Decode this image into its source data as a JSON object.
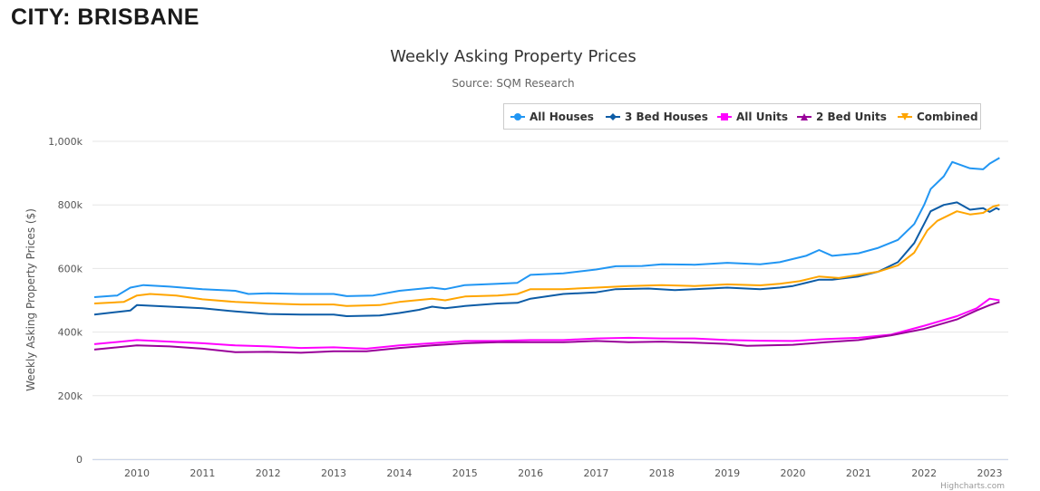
{
  "page": {
    "heading": "CITY: BRISBANE"
  },
  "chart_data": {
    "type": "line",
    "title": "Weekly Asking Property Prices",
    "subtitle": "Source: SQM Research",
    "ylabel": "Weekly Asking Property Prices ($)",
    "xlabel": "",
    "ylim": [
      0,
      1000000
    ],
    "xlim": [
      2009.33,
      2023.2
    ],
    "yticks": [
      {
        "v": 0,
        "label": "0"
      },
      {
        "v": 200000,
        "label": "200k"
      },
      {
        "v": 400000,
        "label": "400k"
      },
      {
        "v": 600000,
        "label": "600k"
      },
      {
        "v": 800000,
        "label": "800k"
      },
      {
        "v": 1000000,
        "label": "1,000k"
      }
    ],
    "xticks": [
      "2010",
      "2011",
      "2012",
      "2013",
      "2014",
      "2015",
      "2016",
      "2017",
      "2018",
      "2019",
      "2020",
      "2021",
      "2022",
      "2023"
    ],
    "grid": true,
    "legend_position": "top-right",
    "credits": "Highcharts.com",
    "series": [
      {
        "name": "All Houses",
        "color": "#2196f3",
        "marker": "circle",
        "points": [
          [
            2009.35,
            510000
          ],
          [
            2009.7,
            515000
          ],
          [
            2009.9,
            540000
          ],
          [
            2010.1,
            548000
          ],
          [
            2010.5,
            543000
          ],
          [
            2011,
            535000
          ],
          [
            2011.5,
            530000
          ],
          [
            2011.7,
            520000
          ],
          [
            2012,
            522000
          ],
          [
            2012.5,
            520000
          ],
          [
            2013,
            520000
          ],
          [
            2013.2,
            513000
          ],
          [
            2013.6,
            515000
          ],
          [
            2014,
            530000
          ],
          [
            2014.5,
            540000
          ],
          [
            2014.7,
            535000
          ],
          [
            2015,
            548000
          ],
          [
            2015.5,
            552000
          ],
          [
            2015.8,
            555000
          ],
          [
            2016,
            580000
          ],
          [
            2016.5,
            585000
          ],
          [
            2017,
            597000
          ],
          [
            2017.3,
            607000
          ],
          [
            2017.7,
            608000
          ],
          [
            2018,
            613000
          ],
          [
            2018.5,
            612000
          ],
          [
            2019,
            618000
          ],
          [
            2019.5,
            613000
          ],
          [
            2019.8,
            620000
          ],
          [
            2020.2,
            640000
          ],
          [
            2020.4,
            658000
          ],
          [
            2020.6,
            640000
          ],
          [
            2021,
            648000
          ],
          [
            2021.3,
            665000
          ],
          [
            2021.6,
            690000
          ],
          [
            2021.85,
            740000
          ],
          [
            2022.0,
            800000
          ],
          [
            2022.1,
            850000
          ],
          [
            2022.3,
            890000
          ],
          [
            2022.43,
            935000
          ],
          [
            2022.7,
            915000
          ],
          [
            2022.9,
            912000
          ],
          [
            2023.0,
            930000
          ],
          [
            2023.15,
            948000
          ]
        ]
      },
      {
        "name": "3 Bed Houses",
        "color": "#0d5ca6",
        "marker": "diamond",
        "points": [
          [
            2009.35,
            455000
          ],
          [
            2009.9,
            468000
          ],
          [
            2010,
            485000
          ],
          [
            2010.5,
            480000
          ],
          [
            2011,
            475000
          ],
          [
            2011.5,
            465000
          ],
          [
            2012,
            457000
          ],
          [
            2012.5,
            455000
          ],
          [
            2013,
            455000
          ],
          [
            2013.2,
            450000
          ],
          [
            2013.7,
            452000
          ],
          [
            2014,
            460000
          ],
          [
            2014.3,
            470000
          ],
          [
            2014.5,
            480000
          ],
          [
            2014.7,
            475000
          ],
          [
            2015,
            482000
          ],
          [
            2015.5,
            490000
          ],
          [
            2015.8,
            492000
          ],
          [
            2016,
            505000
          ],
          [
            2016.5,
            520000
          ],
          [
            2017,
            525000
          ],
          [
            2017.3,
            535000
          ],
          [
            2017.8,
            537000
          ],
          [
            2018.2,
            532000
          ],
          [
            2018.5,
            535000
          ],
          [
            2019,
            540000
          ],
          [
            2019.5,
            535000
          ],
          [
            2019.8,
            540000
          ],
          [
            2020,
            545000
          ],
          [
            2020.4,
            565000
          ],
          [
            2020.6,
            565000
          ],
          [
            2021,
            575000
          ],
          [
            2021.3,
            590000
          ],
          [
            2021.6,
            620000
          ],
          [
            2021.85,
            680000
          ],
          [
            2022.05,
            760000
          ],
          [
            2022.1,
            780000
          ],
          [
            2022.3,
            800000
          ],
          [
            2022.5,
            808000
          ],
          [
            2022.7,
            785000
          ],
          [
            2022.9,
            790000
          ],
          [
            2023.0,
            778000
          ],
          [
            2023.1,
            790000
          ],
          [
            2023.15,
            785000
          ]
        ]
      },
      {
        "name": "All Units",
        "color": "#ff00ff",
        "marker": "square",
        "points": [
          [
            2009.35,
            362000
          ],
          [
            2010,
            375000
          ],
          [
            2010.5,
            370000
          ],
          [
            2011,
            365000
          ],
          [
            2011.5,
            358000
          ],
          [
            2012,
            355000
          ],
          [
            2012.5,
            350000
          ],
          [
            2013,
            352000
          ],
          [
            2013.5,
            348000
          ],
          [
            2014,
            358000
          ],
          [
            2014.5,
            365000
          ],
          [
            2015,
            372000
          ],
          [
            2015.5,
            372000
          ],
          [
            2016,
            375000
          ],
          [
            2016.5,
            375000
          ],
          [
            2017,
            380000
          ],
          [
            2017.5,
            382000
          ],
          [
            2018,
            380000
          ],
          [
            2018.5,
            380000
          ],
          [
            2019,
            375000
          ],
          [
            2019.5,
            373000
          ],
          [
            2020,
            372000
          ],
          [
            2020.5,
            378000
          ],
          [
            2021,
            382000
          ],
          [
            2021.5,
            392000
          ],
          [
            2022,
            420000
          ],
          [
            2022.5,
            450000
          ],
          [
            2022.8,
            475000
          ],
          [
            2023.0,
            505000
          ],
          [
            2023.15,
            500000
          ]
        ]
      },
      {
        "name": "2 Bed Units",
        "color": "#990099",
        "marker": "triangle",
        "points": [
          [
            2009.35,
            345000
          ],
          [
            2010,
            358000
          ],
          [
            2010.5,
            355000
          ],
          [
            2011,
            348000
          ],
          [
            2011.5,
            337000
          ],
          [
            2012,
            338000
          ],
          [
            2012.5,
            335000
          ],
          [
            2013,
            340000
          ],
          [
            2013.5,
            340000
          ],
          [
            2014,
            350000
          ],
          [
            2014.5,
            358000
          ],
          [
            2015,
            365000
          ],
          [
            2015.5,
            368000
          ],
          [
            2016,
            368000
          ],
          [
            2016.5,
            368000
          ],
          [
            2017,
            372000
          ],
          [
            2017.5,
            368000
          ],
          [
            2018,
            370000
          ],
          [
            2018.5,
            367000
          ],
          [
            2019,
            363000
          ],
          [
            2019.3,
            357000
          ],
          [
            2020,
            360000
          ],
          [
            2020.5,
            368000
          ],
          [
            2021,
            375000
          ],
          [
            2021.5,
            390000
          ],
          [
            2022,
            410000
          ],
          [
            2022.5,
            440000
          ],
          [
            2022.8,
            468000
          ],
          [
            2023,
            485000
          ],
          [
            2023.15,
            495000
          ]
        ]
      },
      {
        "name": "Combined",
        "color": "#ffa500",
        "marker": "triangle-down",
        "points": [
          [
            2009.35,
            490000
          ],
          [
            2009.8,
            495000
          ],
          [
            2010,
            515000
          ],
          [
            2010.2,
            520000
          ],
          [
            2010.6,
            515000
          ],
          [
            2011,
            503000
          ],
          [
            2011.5,
            495000
          ],
          [
            2012,
            490000
          ],
          [
            2012.5,
            487000
          ],
          [
            2013,
            487000
          ],
          [
            2013.2,
            482000
          ],
          [
            2013.7,
            485000
          ],
          [
            2014,
            495000
          ],
          [
            2014.5,
            505000
          ],
          [
            2014.7,
            500000
          ],
          [
            2015,
            512000
          ],
          [
            2015.5,
            515000
          ],
          [
            2015.8,
            520000
          ],
          [
            2016,
            535000
          ],
          [
            2016.5,
            535000
          ],
          [
            2017,
            540000
          ],
          [
            2017.5,
            545000
          ],
          [
            2018,
            548000
          ],
          [
            2018.5,
            545000
          ],
          [
            2019,
            550000
          ],
          [
            2019.5,
            547000
          ],
          [
            2019.8,
            552000
          ],
          [
            2020.1,
            560000
          ],
          [
            2020.4,
            575000
          ],
          [
            2020.7,
            570000
          ],
          [
            2021,
            580000
          ],
          [
            2021.3,
            590000
          ],
          [
            2021.6,
            610000
          ],
          [
            2021.85,
            650000
          ],
          [
            2022.05,
            720000
          ],
          [
            2022.2,
            750000
          ],
          [
            2022.5,
            780000
          ],
          [
            2022.7,
            770000
          ],
          [
            2022.9,
            775000
          ],
          [
            2023.05,
            795000
          ],
          [
            2023.15,
            800000
          ]
        ]
      }
    ]
  }
}
